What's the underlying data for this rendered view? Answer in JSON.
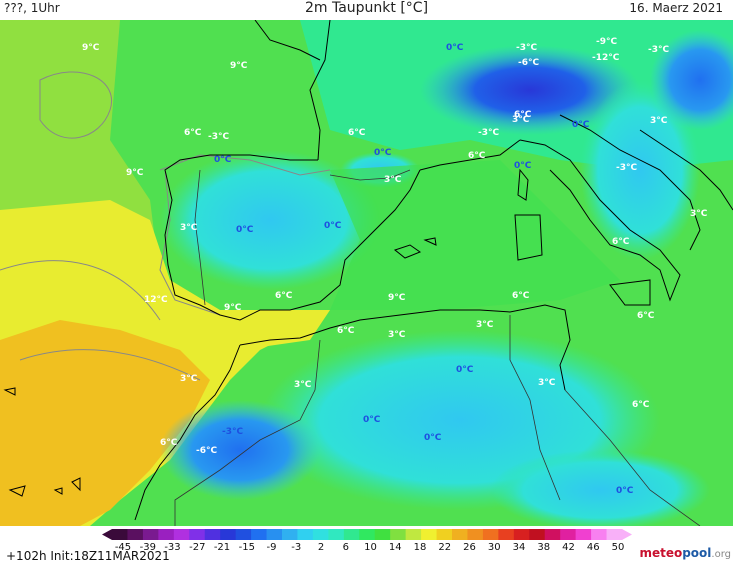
{
  "header": {
    "left": "???, 1Uhr",
    "title": "2m Taupunkt [°C]",
    "date": "16. Maerz 2021"
  },
  "footer": {
    "run": "+102h  Init:18Z11MAR2021"
  },
  "logo": {
    "part1": "meteo",
    "part2": "pool",
    "part3": ".org"
  },
  "colorbar": {
    "ticks": [
      "-45",
      "-39",
      "-33",
      "-27",
      "-21",
      "-15",
      "-9",
      "-3",
      "2",
      "6",
      "10",
      "14",
      "18",
      "22",
      "26",
      "30",
      "34",
      "38",
      "42",
      "46",
      "50"
    ],
    "colors": [
      "#3a0a3a",
      "#5a1060",
      "#7a1a90",
      "#9a20c0",
      "#b030e0",
      "#8030e8",
      "#5030e0",
      "#2838d8",
      "#2050e0",
      "#2070f0",
      "#2890f0",
      "#30b0f0",
      "#30d0f0",
      "#30e0e0",
      "#30e8c0",
      "#30e890",
      "#30e860",
      "#40e040",
      "#80e040",
      "#c0e840",
      "#f0f030",
      "#f0d020",
      "#f0b020",
      "#f09020",
      "#f07020",
      "#e84020",
      "#d82020",
      "#c01020",
      "#d01060",
      "#e020a0",
      "#f040d0",
      "#f880f0",
      "#f8b0f8"
    ]
  },
  "labels": [
    {
      "t": "9°C",
      "c": "white"
    },
    {
      "t": "9°C",
      "c": "white"
    },
    {
      "t": "6°C",
      "c": "white"
    },
    {
      "t": "-3°C",
      "c": "white"
    },
    {
      "t": "6°C",
      "c": "white"
    },
    {
      "t": "0°C",
      "c": "blue"
    },
    {
      "t": "0°C",
      "c": "blue"
    },
    {
      "t": "9°C",
      "c": "white"
    },
    {
      "t": "6°C",
      "c": "white"
    },
    {
      "t": "3°C",
      "c": "white"
    },
    {
      "t": "0°C",
      "c": "blue"
    },
    {
      "t": "0°C",
      "c": "blue"
    },
    {
      "t": "3°C",
      "c": "white"
    },
    {
      "t": "12°C",
      "c": "white"
    },
    {
      "t": "9°C",
      "c": "white"
    },
    {
      "t": "6°C",
      "c": "white"
    },
    {
      "t": "9°C",
      "c": "white"
    },
    {
      "t": "6°C",
      "c": "white"
    },
    {
      "t": "3°C",
      "c": "white"
    },
    {
      "t": "3°C",
      "c": "white"
    },
    {
      "t": "6°C",
      "c": "white"
    },
    {
      "t": "3°C",
      "c": "white"
    },
    {
      "t": "0°C",
      "c": "blue"
    },
    {
      "t": "0°C",
      "c": "blue"
    },
    {
      "t": "3°C",
      "c": "white"
    },
    {
      "t": "0°C",
      "c": "blue"
    },
    {
      "t": "-3°C",
      "c": "blue"
    },
    {
      "t": "-6°C",
      "c": "white"
    },
    {
      "t": "6°C",
      "c": "white"
    },
    {
      "t": "0°C",
      "c": "blue"
    },
    {
      "t": "-3°C",
      "c": "white"
    },
    {
      "t": "-6°C",
      "c": "white"
    },
    {
      "t": "-9°C",
      "c": "white"
    },
    {
      "t": "-12°C",
      "c": "white"
    },
    {
      "t": "-3°C",
      "c": "white"
    },
    {
      "t": "-3°C",
      "c": "white"
    },
    {
      "t": "3°C",
      "c": "white"
    },
    {
      "t": "0°C",
      "c": "blue"
    },
    {
      "t": "3°C",
      "c": "white"
    },
    {
      "t": "-3°C",
      "c": "white"
    },
    {
      "t": "3°C",
      "c": "white"
    },
    {
      "t": "6°C",
      "c": "white"
    },
    {
      "t": "6°C",
      "c": "white"
    },
    {
      "t": "6°C",
      "c": "white"
    },
    {
      "t": "3°C",
      "c": "white"
    },
    {
      "t": "0°C",
      "c": "blue"
    },
    {
      "t": "6°C",
      "c": "white"
    },
    {
      "t": "0°C",
      "c": "blue"
    }
  ]
}
